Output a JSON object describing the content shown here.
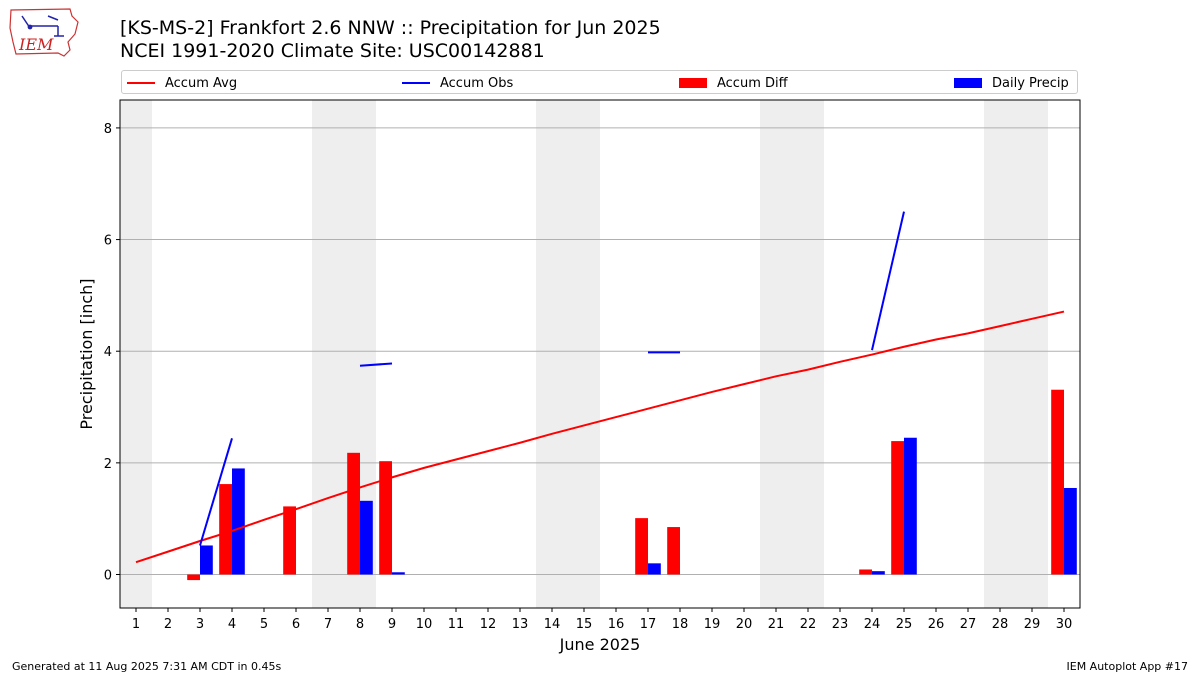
{
  "header": {
    "title": "[KS-MS-2] Frankfort 2.6 NNW :: Precipitation for Jun 2025",
    "subtitle": "NCEI 1991-2020 Climate Site: USC00142881",
    "logo_text": "IEM"
  },
  "footer": {
    "left": "Generated at 11 Aug 2025 7:31 AM CDT in 0.45s",
    "right": "IEM Autoplot App #17"
  },
  "colors": {
    "avg": "#ff0000",
    "obs": "#0000ff",
    "diff": "#ff0000",
    "daily": "#0000ff",
    "weekend_band": "#eeeeee",
    "grid": "#b0b0b0"
  },
  "legend": [
    {
      "label": "Accum Avg",
      "kind": "line",
      "color": "#ff0000"
    },
    {
      "label": "Accum Obs",
      "kind": "line",
      "color": "#0000ff"
    },
    {
      "label": "Accum Diff",
      "kind": "box",
      "color": "#ff0000"
    },
    {
      "label": "Daily Precip",
      "kind": "box",
      "color": "#0000ff"
    }
  ],
  "chart_data": {
    "type": "bar",
    "xlabel": "June 2025",
    "ylabel": "Precipitation [inch]",
    "xlim": [
      0.5,
      30.5
    ],
    "ylim": [
      -0.6,
      8.5
    ],
    "yticks": [
      0,
      2,
      4,
      6,
      8
    ],
    "xticks": [
      1,
      2,
      3,
      4,
      5,
      6,
      7,
      8,
      9,
      10,
      11,
      12,
      13,
      14,
      15,
      16,
      17,
      18,
      19,
      20,
      21,
      22,
      23,
      24,
      25,
      26,
      27,
      28,
      29,
      30
    ],
    "grid": "horizontal",
    "legend_position": "top",
    "shaded_days": [
      [
        0.5,
        1.5
      ],
      [
        6.5,
        8.5
      ],
      [
        13.5,
        15.5
      ],
      [
        20.5,
        22.5
      ],
      [
        27.5,
        29.5
      ]
    ],
    "days": [
      1,
      2,
      3,
      4,
      5,
      6,
      7,
      8,
      9,
      10,
      11,
      12,
      13,
      14,
      15,
      16,
      17,
      18,
      19,
      20,
      21,
      22,
      23,
      24,
      25,
      26,
      27,
      28,
      29,
      30
    ],
    "series": [
      {
        "name": "Accum Avg",
        "kind": "line",
        "values": [
          0.22,
          0.41,
          0.6,
          0.78,
          0.98,
          1.17,
          1.37,
          1.56,
          1.74,
          1.91,
          2.06,
          2.21,
          2.36,
          2.52,
          2.67,
          2.82,
          2.97,
          3.12,
          3.27,
          3.41,
          3.55,
          3.67,
          3.81,
          3.94,
          4.08,
          4.21,
          4.32,
          4.45,
          4.58,
          4.71
        ]
      },
      {
        "name": "Accum Obs",
        "kind": "line",
        "values": [
          null,
          null,
          0.52,
          2.44,
          null,
          null,
          null,
          3.74,
          3.78,
          null,
          null,
          null,
          null,
          null,
          null,
          null,
          3.98,
          3.98,
          null,
          null,
          null,
          null,
          null,
          4.02,
          6.5,
          null,
          null,
          null,
          null,
          null
        ]
      },
      {
        "name": "Accum Diff",
        "kind": "bar",
        "values": [
          null,
          null,
          -0.1,
          1.62,
          null,
          1.22,
          null,
          2.18,
          2.03,
          null,
          null,
          null,
          null,
          null,
          null,
          null,
          1.01,
          0.85,
          null,
          null,
          null,
          null,
          null,
          0.09,
          2.39,
          null,
          null,
          null,
          null,
          3.31
        ]
      },
      {
        "name": "Daily Precip",
        "kind": "bar",
        "values": [
          null,
          null,
          0.52,
          1.9,
          null,
          null,
          null,
          1.32,
          0.04,
          null,
          null,
          null,
          null,
          null,
          null,
          null,
          0.2,
          null,
          null,
          null,
          null,
          null,
          null,
          0.06,
          2.45,
          null,
          null,
          null,
          null,
          1.55
        ]
      }
    ]
  }
}
